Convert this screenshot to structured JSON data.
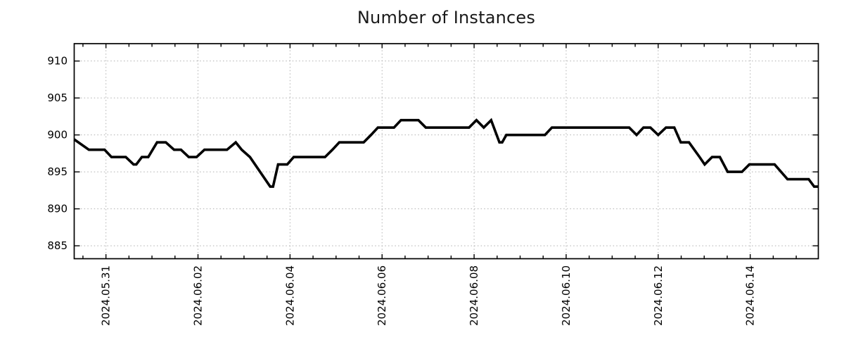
{
  "page": {
    "background": "#ffffff"
  },
  "chart_data": {
    "type": "line",
    "title": "Number of Instances",
    "title_color": "#1a1a1a",
    "line_color": "#000000",
    "grid_color": "#b0b0b0",
    "axis_color": "#000000",
    "tick_label_color": "#000000",
    "xlabel": "",
    "ylabel": "",
    "legend_position": "none",
    "grid": true,
    "y_ticks": [
      885,
      890,
      895,
      900,
      905,
      910
    ],
    "y_range": [
      883.25,
      912.35
    ],
    "x_tick_labels": [
      "2024.05.31",
      "2024.06.02",
      "2024.06.04",
      "2024.06.06",
      "2024.06.08",
      "2024.06.10",
      "2024.06.12",
      "2024.06.14"
    ],
    "x_tick_days": [
      1,
      3,
      5,
      7,
      9,
      11,
      13,
      15
    ],
    "x_minor_tick_interval_days": 0.5,
    "x_epoch": "2024.05.30 00:00",
    "x_range_days": [
      0.31,
      16.48
    ],
    "points": [
      [
        0.31,
        899.4
      ],
      [
        0.63,
        898
      ],
      [
        0.97,
        898
      ],
      [
        1.12,
        897
      ],
      [
        1.43,
        897
      ],
      [
        1.6,
        896
      ],
      [
        1.66,
        896
      ],
      [
        1.78,
        897
      ],
      [
        1.92,
        897
      ],
      [
        2.11,
        899
      ],
      [
        2.3,
        899
      ],
      [
        2.48,
        898
      ],
      [
        2.63,
        898
      ],
      [
        2.8,
        897
      ],
      [
        2.97,
        897
      ],
      [
        3.14,
        898
      ],
      [
        3.63,
        898
      ],
      [
        3.82,
        899
      ],
      [
        3.95,
        898
      ],
      [
        4.13,
        897
      ],
      [
        4.57,
        893
      ],
      [
        4.63,
        893
      ],
      [
        4.74,
        896
      ],
      [
        4.94,
        896
      ],
      [
        5.08,
        897
      ],
      [
        5.76,
        897
      ],
      [
        5.92,
        898
      ],
      [
        6.07,
        899
      ],
      [
        6.6,
        899
      ],
      [
        6.76,
        900
      ],
      [
        6.91,
        901
      ],
      [
        7.26,
        901
      ],
      [
        7.41,
        902
      ],
      [
        7.79,
        902
      ],
      [
        7.95,
        901
      ],
      [
        8.89,
        901
      ],
      [
        9.05,
        902
      ],
      [
        9.21,
        901
      ],
      [
        9.37,
        902
      ],
      [
        9.55,
        899
      ],
      [
        9.61,
        899
      ],
      [
        9.7,
        900
      ],
      [
        10.54,
        900
      ],
      [
        10.69,
        901
      ],
      [
        12.37,
        901
      ],
      [
        12.53,
        900
      ],
      [
        12.68,
        901
      ],
      [
        12.83,
        901
      ],
      [
        13.0,
        900
      ],
      [
        13.17,
        901
      ],
      [
        13.35,
        901
      ],
      [
        13.49,
        899
      ],
      [
        13.67,
        899
      ],
      [
        13.9,
        897
      ],
      [
        14.01,
        896
      ],
      [
        14.17,
        897
      ],
      [
        14.34,
        897
      ],
      [
        14.51,
        895
      ],
      [
        14.82,
        895
      ],
      [
        14.98,
        896
      ],
      [
        15.53,
        896
      ],
      [
        15.67,
        895
      ],
      [
        15.81,
        894
      ],
      [
        16.27,
        894
      ],
      [
        16.39,
        893
      ],
      [
        16.48,
        893
      ]
    ]
  }
}
